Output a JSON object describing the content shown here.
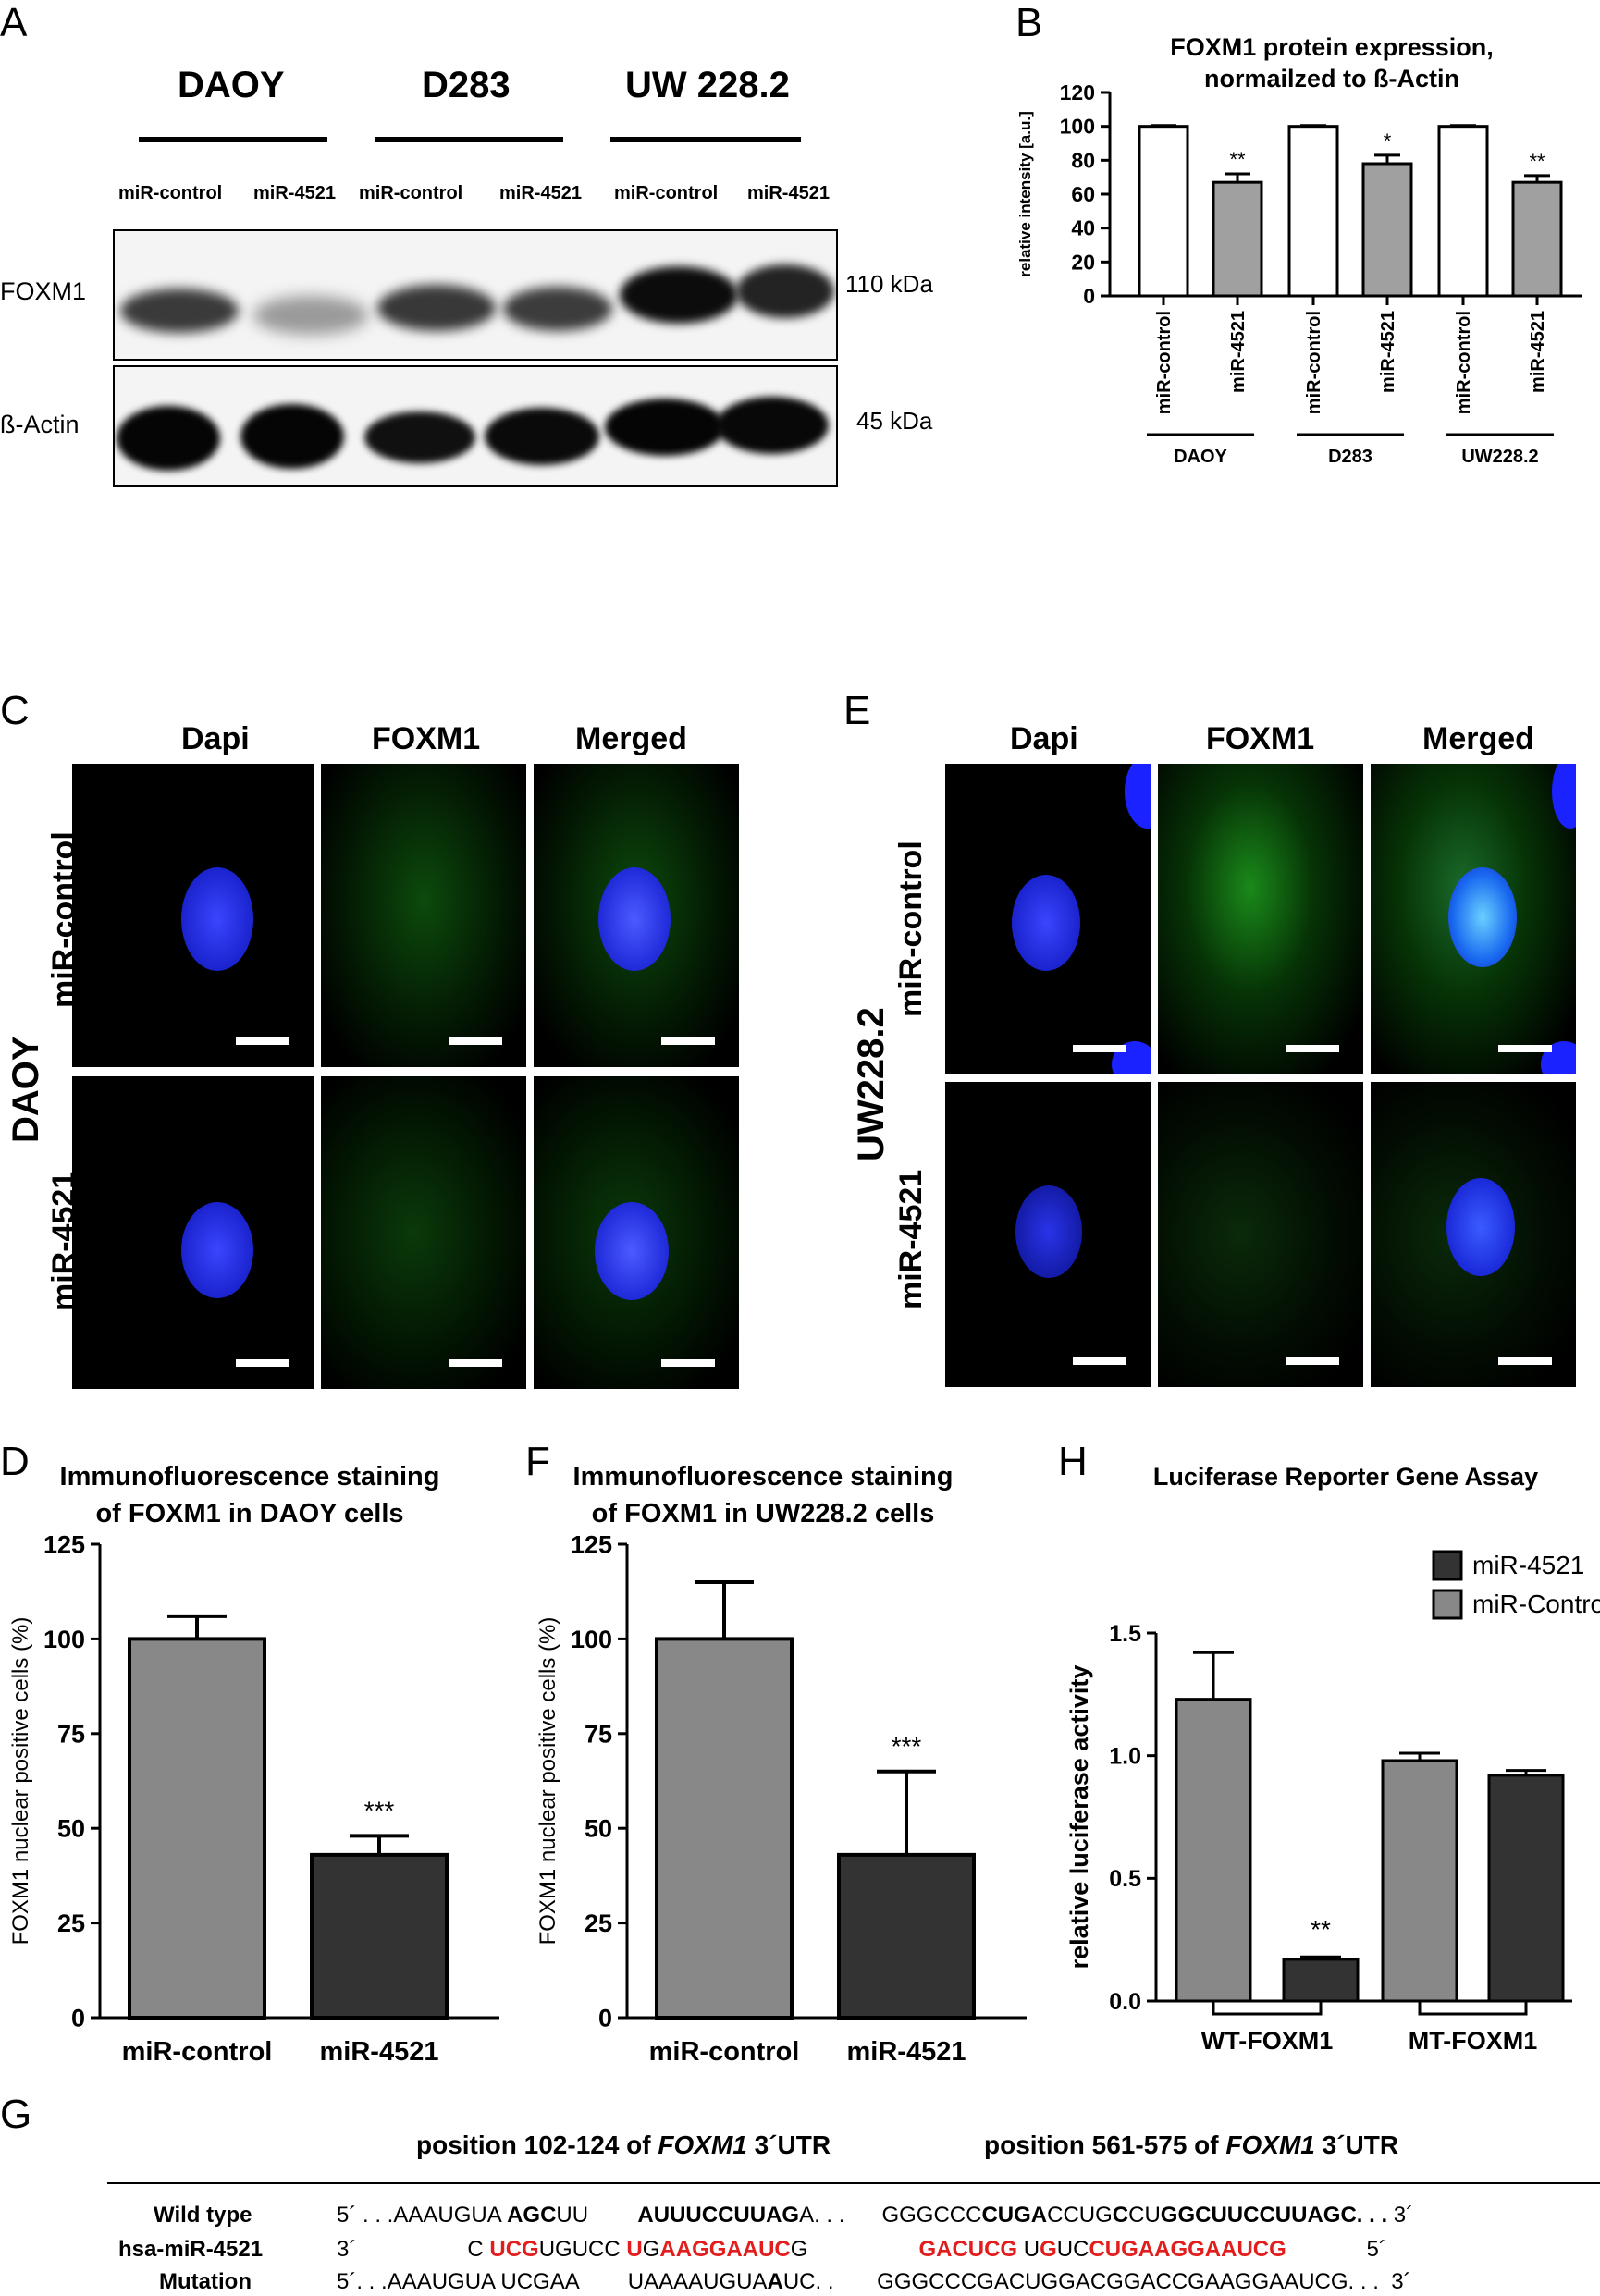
{
  "panels": {
    "A": "A",
    "B": "B",
    "C": "C",
    "D": "D",
    "E": "E",
    "F": "F",
    "G": "G",
    "H": "H"
  },
  "panelA": {
    "cell_lines": [
      "DAOY",
      "D283",
      "UW 228.2"
    ],
    "lanes": [
      "miR-control",
      "miR-4521",
      "miR-control",
      "miR-4521",
      "miR-control",
      "miR-4521"
    ],
    "rows": [
      "FOXM1",
      "ß-Actin"
    ],
    "sizes": [
      "110 kDa",
      "45 kDa"
    ]
  },
  "micro": {
    "columns": [
      "Dapi",
      "FOXM1",
      "Merged"
    ],
    "rows": [
      "miR-control",
      "miR-4521"
    ],
    "cellC": "DAOY",
    "cellE": "UW228.2"
  },
  "colors": {
    "dark_bar": "#333333",
    "light_bar": "#888888",
    "dapi": "#1a22ff",
    "foxm1": "#22d422",
    "red": "#e21d1d"
  },
  "chart_data": [
    {
      "id": "B",
      "type": "bar",
      "title": [
        "FOXM1 protein expression,",
        "normailzed to ß-Actin"
      ],
      "ylabel": "relative intensity [a.u.]",
      "ylim": [
        0,
        120
      ],
      "yticks": [
        0,
        20,
        40,
        60,
        80,
        100,
        120
      ],
      "categories": [
        "miR-control",
        "miR-4521",
        "miR-control",
        "miR-4521",
        "miR-control",
        "miR-4521"
      ],
      "groups": [
        "DAOY",
        "D283",
        "UW228.2"
      ],
      "values": [
        100,
        67,
        100,
        78,
        100,
        67
      ],
      "errors": [
        0.5,
        5,
        0.5,
        5,
        0.5,
        4
      ],
      "significance": [
        "",
        "**",
        "",
        "*",
        "",
        "**"
      ],
      "fills": [
        "#ffffff",
        "#a0a0a0",
        "#ffffff",
        "#a0a0a0",
        "#ffffff",
        "#a0a0a0"
      ]
    },
    {
      "id": "D",
      "type": "bar",
      "title": [
        "Immunofluorescence staining",
        "of FOXM1 in DAOY cells"
      ],
      "ylabel": "FOXM1 nuclear positive cells (%)",
      "ylim": [
        0,
        125
      ],
      "yticks": [
        0,
        25,
        50,
        75,
        100,
        125
      ],
      "categories": [
        "miR-control",
        "miR-4521"
      ],
      "values": [
        100,
        43
      ],
      "errors": [
        6,
        5
      ],
      "significance": [
        "",
        "***"
      ],
      "fills": [
        "#888888",
        "#333333"
      ]
    },
    {
      "id": "F",
      "type": "bar",
      "title": [
        "Immunofluorescence staining",
        "of FOXM1 in UW228.2 cells"
      ],
      "ylabel": "FOXM1 nuclear positive cells (%)",
      "ylim": [
        0,
        125
      ],
      "yticks": [
        0,
        25,
        50,
        75,
        100,
        125
      ],
      "categories": [
        "miR-control",
        "miR-4521"
      ],
      "values": [
        100,
        43
      ],
      "errors": [
        15,
        22
      ],
      "significance": [
        "",
        "***"
      ],
      "fills": [
        "#888888",
        "#333333"
      ]
    },
    {
      "id": "H",
      "type": "bar",
      "title": [
        "Luciferase Reporter Gene Assay"
      ],
      "ylabel": "relative luciferase activity",
      "ylim": [
        0,
        1.5
      ],
      "yticks": [
        0.0,
        0.5,
        1.0,
        1.5
      ],
      "ytick_labels": [
        "0.0",
        "0.5",
        "1.0",
        "1.5"
      ],
      "categories": [
        "WT-FOXM1",
        "MT-FOXM1"
      ],
      "series": [
        {
          "name": "miR-Control",
          "values": [
            1.23,
            0.98
          ],
          "errors": [
            0.19,
            0.03
          ],
          "fill": "#888888"
        },
        {
          "name": "miR-4521",
          "values": [
            0.17,
            0.92
          ],
          "errors": [
            0.01,
            0.02
          ],
          "fill": "#333333"
        }
      ],
      "legend": [
        "miR-4521",
        "miR-Control"
      ],
      "significance": [
        {
          "category": 0,
          "series": 1,
          "text": "**"
        }
      ]
    }
  ],
  "panelG": {
    "header1_pre": "position 102-124 of ",
    "header1_gene": "FOXM1",
    "header1_post": " 3´UTR",
    "header2_pre": "position 561-575 of ",
    "header2_gene": "FOXM1",
    "header2_post": " 3´UTR",
    "row_labels": [
      "Wild type",
      "hsa-miR-4521",
      "Mutation"
    ],
    "rows": [
      [
        {
          "t": "5´ . . .AAAUGUA ",
          "c": ""
        },
        {
          "t": "AGC",
          "c": "b"
        },
        {
          "t": "UU        ",
          "c": ""
        },
        {
          "t": "AUUUCCUUAG",
          "c": "b"
        },
        {
          "t": "A. . .      ",
          "c": ""
        },
        {
          "t": "GGGCCC",
          "c": ""
        },
        {
          "t": "CUGA",
          "c": "b"
        },
        {
          "t": "CC",
          "c": ""
        },
        {
          "t": "UG",
          "c": ""
        },
        {
          "t": "C",
          "c": "b"
        },
        {
          "t": "CU",
          "c": ""
        },
        {
          "t": "GG",
          "c": "b"
        },
        {
          "t": "CUUCCUUAGC. . .",
          "c": "b"
        },
        {
          "t": " 3´",
          "c": ""
        }
      ],
      [
        {
          "t": "3´                  C ",
          "c": ""
        },
        {
          "t": "UCG",
          "c": "r"
        },
        {
          "t": "UGUCC ",
          "c": ""
        },
        {
          "t": "U",
          "c": "r"
        },
        {
          "t": "G",
          "c": ""
        },
        {
          "t": "AAGGAAUC",
          "c": "r"
        },
        {
          "t": "G                  ",
          "c": ""
        },
        {
          "t": "GACUCG",
          "c": "r"
        },
        {
          "t": " U",
          "c": ""
        },
        {
          "t": "G",
          "c": "r"
        },
        {
          "t": "UC",
          "c": ""
        },
        {
          "t": "CUGAAGGAAUCG",
          "c": "r"
        },
        {
          "t": "             5´",
          "c": ""
        }
      ],
      [
        {
          "t": "5´. . .AAAUGUA UCGAA        UAAAAUGUA",
          "c": ""
        },
        {
          "t": "A",
          "c": "b"
        },
        {
          "t": "UC. .       GGGCCCGACUGGACGGACCGAAGGAAUCG. . .  3´",
          "c": ""
        }
      ]
    ]
  }
}
